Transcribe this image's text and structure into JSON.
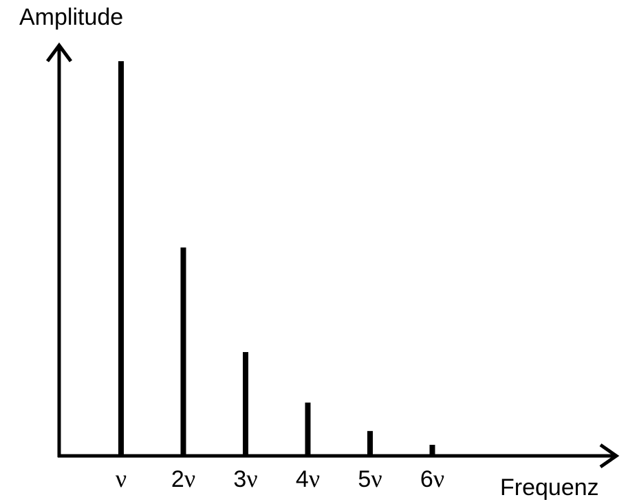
{
  "chart_data": {
    "type": "bar",
    "ylabel": "Amplitude",
    "xlabel": "Frequenz",
    "categories": [
      "ν",
      "2ν",
      "3ν",
      "4ν",
      "5ν",
      "6ν"
    ],
    "values": [
      1.0,
      0.528,
      0.263,
      0.135,
      0.063,
      0.028
    ],
    "ylim": [
      0,
      1.0
    ],
    "grid": false,
    "legend": "none",
    "bar_color": "#000000"
  }
}
